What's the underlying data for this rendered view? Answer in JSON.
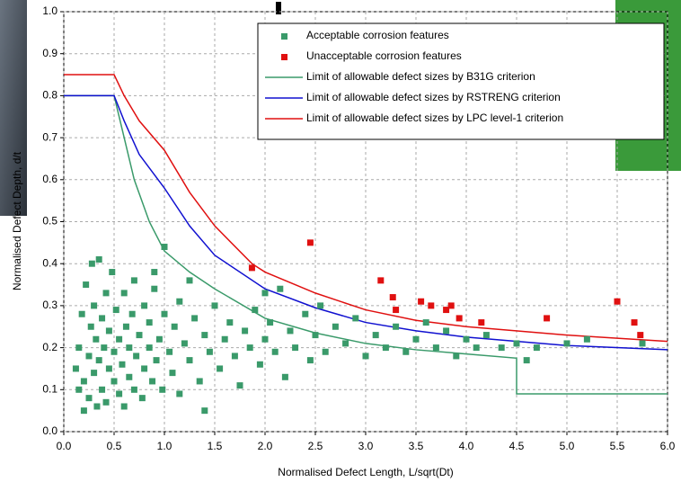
{
  "chart_data": {
    "type": "scatter",
    "x_label": "Normalised Defect Length, L/sqrt(Dt)",
    "y_label": "Normalised Defect Depth, d/t",
    "xlim": [
      0,
      6
    ],
    "ylim": [
      0,
      1
    ],
    "xticks": [
      {
        "value": 0,
        "label": "0.0"
      },
      0.5,
      {
        "value": 1,
        "label": "1.0"
      },
      1.5,
      {
        "value": 2,
        "label": "2.0"
      },
      2.5,
      {
        "value": 3,
        "label": "3.0"
      },
      3.5,
      {
        "value": 4,
        "label": "4.0"
      },
      4.5,
      {
        "value": 5,
        "label": "5.0"
      },
      5.5,
      {
        "value": 6,
        "label": "6.0"
      }
    ],
    "yticks": [
      {
        "value": 0,
        "label": "0.0"
      },
      0.1,
      0.2,
      0.3,
      0.4,
      0.5,
      0.6,
      0.7,
      0.8,
      0.9,
      {
        "value": 1,
        "label": "1.0"
      }
    ],
    "grid": true,
    "legend": "top-right",
    "series": [
      {
        "name": "Acceptable corrosion features",
        "color": "#3a9a6a",
        "style": "markers",
        "x": [
          0.12,
          0.15,
          0.15,
          0.18,
          0.2,
          0.2,
          0.22,
          0.25,
          0.25,
          0.27,
          0.28,
          0.3,
          0.3,
          0.32,
          0.33,
          0.35,
          0.35,
          0.38,
          0.38,
          0.4,
          0.42,
          0.42,
          0.45,
          0.45,
          0.48,
          0.5,
          0.5,
          0.52,
          0.55,
          0.55,
          0.58,
          0.6,
          0.6,
          0.62,
          0.65,
          0.65,
          0.68,
          0.7,
          0.7,
          0.72,
          0.75,
          0.78,
          0.8,
          0.8,
          0.85,
          0.85,
          0.88,
          0.9,
          0.92,
          0.95,
          0.98,
          1.0,
          1.0,
          1.05,
          1.08,
          1.1,
          1.15,
          1.15,
          1.2,
          1.25,
          1.3,
          1.35,
          1.4,
          1.45,
          1.5,
          1.55,
          1.6,
          1.65,
          1.7,
          1.75,
          1.8,
          1.85,
          1.9,
          1.95,
          2.0,
          2.05,
          2.1,
          2.15,
          2.2,
          2.25,
          2.3,
          2.4,
          2.45,
          2.5,
          2.55,
          2.6,
          2.7,
          2.8,
          2.9,
          3.0,
          3.1,
          3.2,
          3.3,
          3.4,
          3.5,
          3.6,
          3.7,
          3.8,
          3.9,
          4.0,
          4.1,
          4.2,
          4.35,
          4.5,
          4.6,
          4.7,
          5.0,
          5.2,
          5.75,
          1.25,
          0.9,
          2.0,
          1.4
        ],
        "values": [
          0.15,
          0.1,
          0.2,
          0.28,
          0.05,
          0.12,
          0.35,
          0.18,
          0.08,
          0.25,
          0.4,
          0.14,
          0.3,
          0.22,
          0.06,
          0.41,
          0.17,
          0.1,
          0.27,
          0.2,
          0.33,
          0.07,
          0.15,
          0.24,
          0.38,
          0.12,
          0.19,
          0.29,
          0.09,
          0.22,
          0.16,
          0.33,
          0.06,
          0.25,
          0.13,
          0.2,
          0.28,
          0.1,
          0.36,
          0.18,
          0.23,
          0.08,
          0.3,
          0.15,
          0.2,
          0.26,
          0.12,
          0.34,
          0.17,
          0.22,
          0.1,
          0.28,
          0.44,
          0.19,
          0.14,
          0.25,
          0.31,
          0.09,
          0.21,
          0.17,
          0.27,
          0.12,
          0.23,
          0.19,
          0.3,
          0.15,
          0.22,
          0.26,
          0.18,
          0.11,
          0.24,
          0.2,
          0.29,
          0.16,
          0.22,
          0.26,
          0.19,
          0.34,
          0.13,
          0.24,
          0.2,
          0.28,
          0.17,
          0.23,
          0.3,
          0.19,
          0.25,
          0.21,
          0.27,
          0.18,
          0.23,
          0.2,
          0.25,
          0.19,
          0.22,
          0.26,
          0.2,
          0.24,
          0.18,
          0.22,
          0.2,
          0.23,
          0.2,
          0.21,
          0.17,
          0.2,
          0.21,
          0.22,
          0.21,
          0.36,
          0.38,
          0.33,
          0.05
        ]
      },
      {
        "name": "Unacceptable corrosion features",
        "color": "#e01010",
        "style": "markers",
        "x": [
          1.87,
          2.45,
          3.15,
          3.27,
          3.3,
          3.55,
          3.65,
          3.8,
          3.85,
          3.93,
          4.15,
          4.8,
          5.5,
          5.67,
          5.73
        ],
        "values": [
          0.39,
          0.45,
          0.36,
          0.32,
          0.29,
          0.31,
          0.3,
          0.29,
          0.3,
          0.27,
          0.26,
          0.27,
          0.31,
          0.26,
          0.23
        ]
      },
      {
        "name": "Limit of allowable defect sizes by B31G criterion",
        "color": "#3a9a6a",
        "style": "line",
        "x": [
          0,
          0.5,
          0.6,
          0.7,
          0.85,
          1,
          1.25,
          1.5,
          2,
          2.5,
          3,
          3.5,
          4,
          4.5,
          4.5,
          6
        ],
        "values": [
          0.8,
          0.8,
          0.7,
          0.6,
          0.5,
          0.43,
          0.38,
          0.34,
          0.27,
          0.235,
          0.21,
          0.195,
          0.185,
          0.175,
          0.09,
          0.09
        ]
      },
      {
        "name": "Limit of allowable defect sizes by RSTRENG criterion",
        "color": "#1010d0",
        "style": "line",
        "x": [
          0,
          0.5,
          0.6,
          0.75,
          1,
          1.25,
          1.5,
          2,
          2.5,
          3,
          3.5,
          4,
          5,
          6
        ],
        "values": [
          0.8,
          0.8,
          0.74,
          0.66,
          0.58,
          0.49,
          0.42,
          0.34,
          0.295,
          0.26,
          0.24,
          0.225,
          0.205,
          0.195
        ]
      },
      {
        "name": "Limit of allowable defect sizes by LPC level-1 criterion",
        "color": "#e01010",
        "style": "line",
        "x": [
          0,
          0.5,
          0.6,
          0.75,
          1,
          1.25,
          1.5,
          1.87,
          2,
          2.5,
          3,
          3.5,
          4,
          5,
          6
        ],
        "values": [
          0.85,
          0.85,
          0.8,
          0.74,
          0.67,
          0.57,
          0.49,
          0.4,
          0.38,
          0.33,
          0.29,
          0.265,
          0.25,
          0.23,
          0.215
        ]
      }
    ]
  }
}
